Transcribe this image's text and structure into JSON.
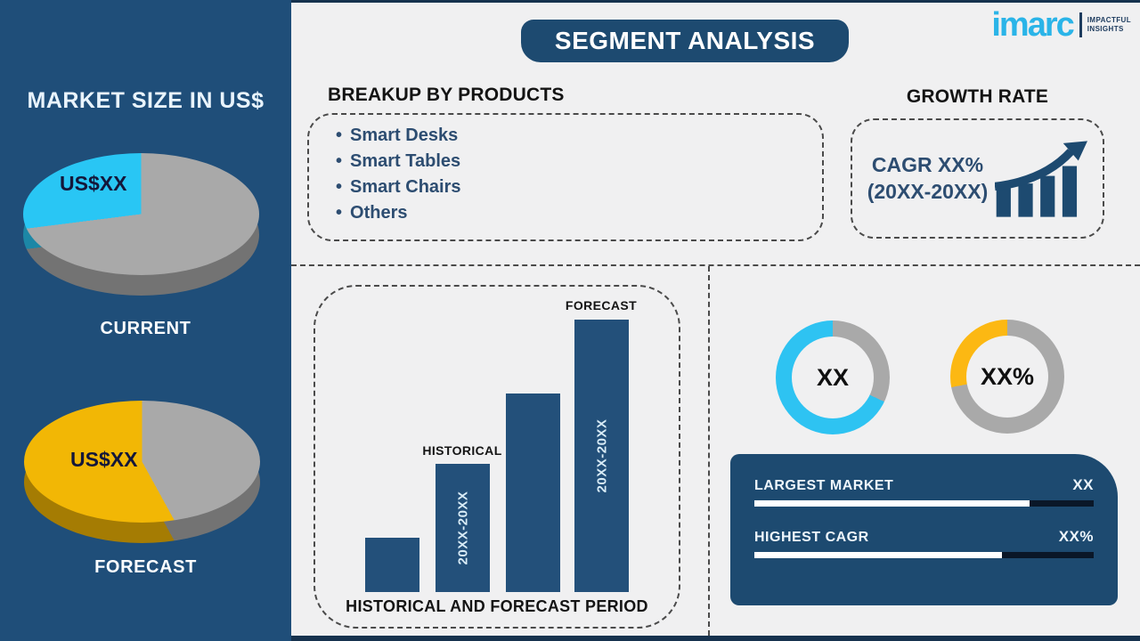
{
  "colors": {
    "sidebar_blue": "#1f4e79",
    "navy": "#1d4a70",
    "bar_blue": "#23507a",
    "cyan": "#29c6f4",
    "pie_yellow": "#f2b705",
    "donut_yellow": "#fcb813",
    "gray": "#a9a9a9",
    "background": "#f0f0f1",
    "track_dark": "#0a1728"
  },
  "logo": {
    "brand": "imarc",
    "tagline_line1": "IMPACTFUL",
    "tagline_line2": "INSIGHTS"
  },
  "header": {
    "title": "SEGMENT ANALYSIS"
  },
  "sidebar": {
    "title": "MARKET SIZE IN US$"
  },
  "breakup": {
    "title": "BREAKUP BY PRODUCTS",
    "items": [
      "Smart Desks",
      "Smart Tables",
      "Smart Chairs",
      "Others"
    ]
  },
  "growth": {
    "title": "GROWTH RATE",
    "cagr_line1": "CAGR XX%",
    "cagr_line2": "(20XX-20XX)"
  },
  "kpi": {
    "rows": [
      {
        "label": "LARGEST MARKET",
        "value": "XX",
        "fill_pct": 81
      },
      {
        "label": "HIGHEST CAGR",
        "value": "XX%",
        "fill_pct": 73
      }
    ]
  },
  "chart_data": [
    {
      "id": "pie-current",
      "type": "pie",
      "style": "3d",
      "title": "CURRENT",
      "value_label": "US$XX",
      "slices": [
        {
          "label": "remainder",
          "pct": 73,
          "color": "#a9a9a9"
        },
        {
          "label": "highlighted market size",
          "pct": 27,
          "color": "#29c6f4"
        }
      ]
    },
    {
      "id": "pie-forecast",
      "type": "pie",
      "style": "3d",
      "title": "FORECAST",
      "value_label": "US$XX",
      "slices": [
        {
          "label": "remainder",
          "pct": 42,
          "color": "#a9a9a9"
        },
        {
          "label": "highlighted market size",
          "pct": 58,
          "color": "#f2b705"
        }
      ]
    },
    {
      "id": "period-bars",
      "type": "bar",
      "title": "HISTORICAL AND FORECAST PERIOD",
      "ylabel": "",
      "axis_values": "unlabeled",
      "bar_color": "#23507a",
      "bars": [
        {
          "label": "",
          "annotation": "",
          "rel_height_pct": 20
        },
        {
          "label": "20XX-20XX",
          "annotation": "HISTORICAL",
          "rel_height_pct": 47
        },
        {
          "label": "",
          "annotation": "",
          "rel_height_pct": 73
        },
        {
          "label": "20XX-20XX",
          "annotation": "FORECAST",
          "rel_height_pct": 100
        }
      ]
    },
    {
      "id": "donut-largest",
      "type": "donut",
      "center_label": "XX",
      "slices": [
        {
          "label": "remainder",
          "pct": 32,
          "color": "#a9a9a9"
        },
        {
          "label": "largest market share",
          "pct": 68,
          "color": "#2ec3f2"
        }
      ]
    },
    {
      "id": "donut-cagr",
      "type": "donut",
      "center_label": "XX%",
      "slices": [
        {
          "label": "remainder",
          "pct": 72,
          "color": "#a9a9a9"
        },
        {
          "label": "highest cagr share",
          "pct": 28,
          "color": "#fcb813"
        }
      ]
    }
  ]
}
